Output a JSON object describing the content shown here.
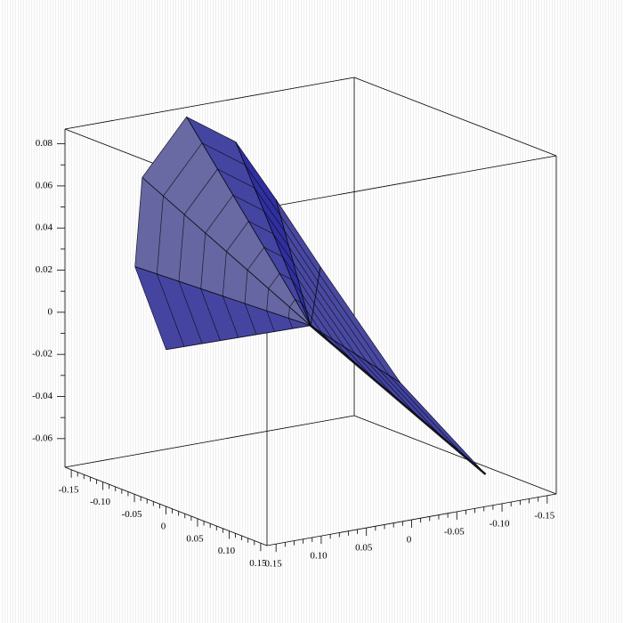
{
  "chart_data": {
    "type": "surface3d",
    "xlim": [
      -0.16,
      0.16
    ],
    "ylim": [
      -0.16,
      0.16
    ],
    "zlim": [
      -0.0736,
      0.087
    ],
    "xticks": [
      -0.15,
      {
        "value": -0.1,
        "label": "-0.10"
      },
      -0.05,
      0,
      0.05,
      {
        "value": 0.1,
        "label": "0.10"
      },
      0.15
    ],
    "yticks": [
      -0.15,
      {
        "value": -0.1,
        "label": "-0.10"
      },
      -0.05,
      0,
      0.05,
      {
        "value": 0.1,
        "label": "0.10"
      },
      0.15
    ],
    "zticks": [
      -0.06,
      -0.04,
      -0.02,
      0,
      0.02,
      0.04,
      0.06,
      0.08
    ],
    "color": "#2b2ba0",
    "mesh_color": "#000000",
    "surface": {
      "apex": [
        0,
        0,
        0
      ],
      "rim": [
        [
          -0.123,
          0.074,
          -0.02
        ],
        [
          -0.135,
          0.1,
          0.02
        ],
        [
          -0.145,
          0.085,
          0.06
        ],
        [
          -0.145,
          0.036,
          0.085
        ],
        [
          -0.08,
          0.027,
          0.08
        ],
        [
          -0.016,
          0.027,
          0.06
        ],
        [
          0.017,
          0.001,
          0.03
        ],
        [
          0.086,
          -0.039,
          -0.02
        ],
        [
          0.091,
          -0.13,
          -0.07
        ]
      ]
    }
  }
}
